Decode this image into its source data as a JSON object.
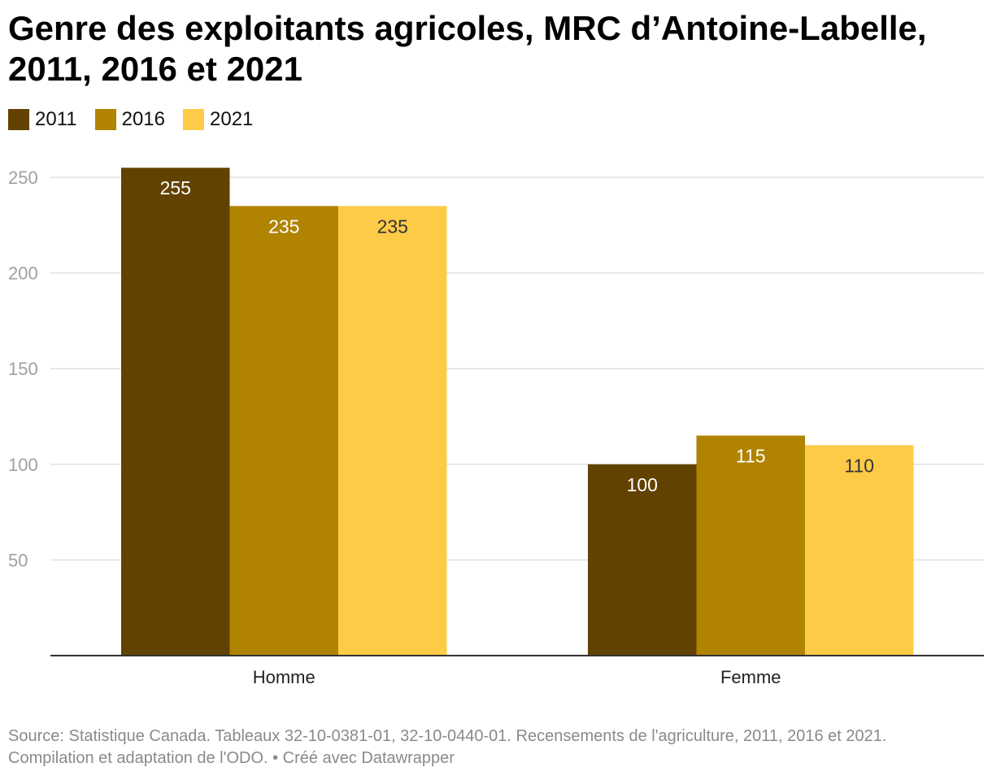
{
  "header": {
    "title": "Genre des exploitants agricoles, MRC d’Antoine-Labelle, 2011, 2016 et 2021"
  },
  "chart_data": {
    "type": "bar",
    "title": "Genre des exploitants agricoles, MRC d’Antoine-Labelle, 2011, 2016 et 2021",
    "xlabel": "",
    "ylabel": "",
    "categories": [
      "Homme",
      "Femme"
    ],
    "series": [
      {
        "name": "2011",
        "color": "#624200",
        "values": [
          255,
          100
        ]
      },
      {
        "name": "2016",
        "color": "#b08300",
        "values": [
          235,
          115
        ]
      },
      {
        "name": "2021",
        "color": "#fdcb48",
        "values": [
          235,
          110
        ]
      }
    ],
    "ylim": [
      0,
      250
    ],
    "yticks": [
      50,
      100,
      150,
      200,
      250
    ],
    "grid": true,
    "legend_position": "top-left",
    "data_labels": true
  },
  "footer": {
    "source_line1": "Source: Statistique Canada. Tableaux 32-10-0381-01, 32-10-0440-01. Recensements de l'agriculture, 2011, 2016 et 2021.",
    "source_line2": "Compilation et adaptation de l'ODO. • Créé avec Datawrapper"
  }
}
